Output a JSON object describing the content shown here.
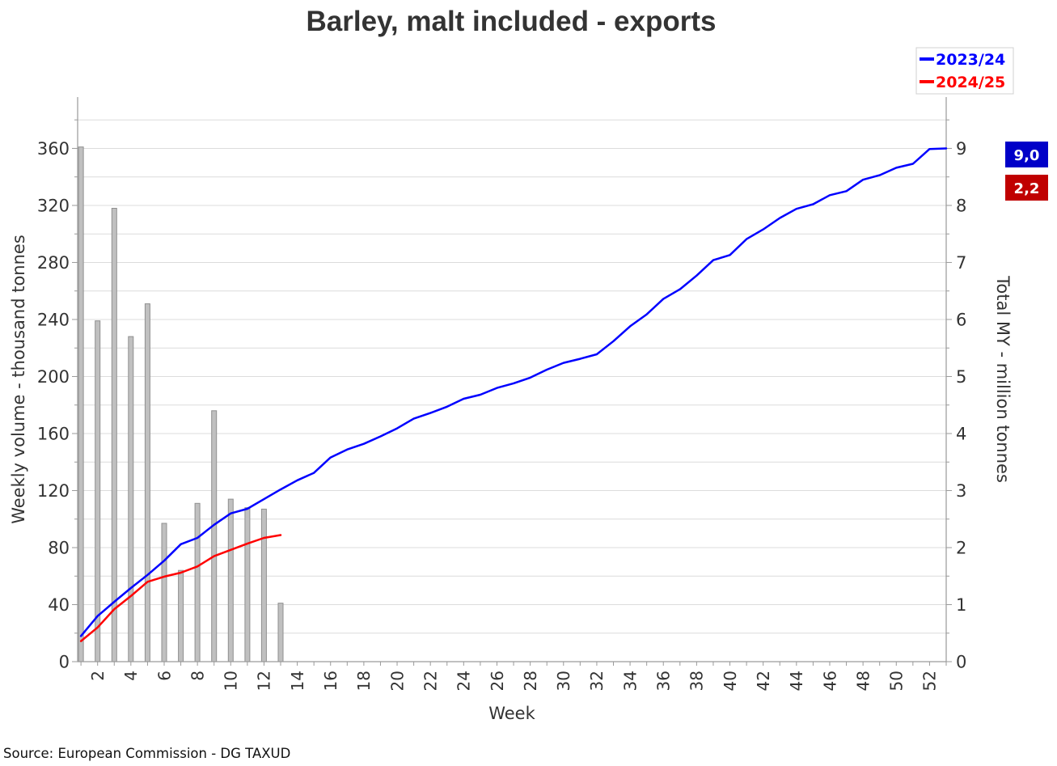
{
  "chart_data": {
    "type": "line",
    "title": "Barley, malt included - exports",
    "xlabel": "Week",
    "ylabel": "Weekly volume - thousand tonnes",
    "y2label": "Total MY - million tonnes",
    "xlim": [
      0.8,
      53
    ],
    "ylim": [
      0,
      396
    ],
    "y2lim": [
      0,
      9.9
    ],
    "x_ticks": [
      2,
      4,
      6,
      8,
      10,
      12,
      14,
      16,
      18,
      20,
      22,
      24,
      26,
      28,
      30,
      32,
      34,
      36,
      38,
      40,
      42,
      44,
      46,
      48,
      50,
      52
    ],
    "y_ticks": [
      0,
      40,
      80,
      120,
      160,
      200,
      240,
      280,
      320,
      360
    ],
    "y2_ticks": [
      0,
      1,
      2,
      3,
      4,
      5,
      6,
      7,
      8,
      9
    ],
    "grid": true,
    "legend_position": "top-right",
    "series": [
      {
        "name": "2023/24",
        "type": "line",
        "axis": "right",
        "color": "#0000ff",
        "x": [
          1,
          2,
          3,
          4,
          5,
          6,
          7,
          8,
          9,
          10,
          11,
          12,
          13,
          14,
          15,
          16,
          17,
          18,
          19,
          20,
          21,
          22,
          23,
          24,
          25,
          26,
          27,
          28,
          29,
          30,
          31,
          32,
          33,
          34,
          35,
          36,
          37,
          38,
          39,
          40,
          41,
          42,
          43,
          44,
          45,
          46,
          47,
          48,
          49,
          50,
          51,
          52,
          53
        ],
        "values": [
          0.45,
          0.8,
          1.05,
          1.29,
          1.52,
          1.77,
          2.06,
          2.17,
          2.4,
          2.6,
          2.68,
          2.85,
          3.02,
          3.18,
          3.31,
          3.58,
          3.72,
          3.82,
          3.95,
          4.09,
          4.26,
          4.36,
          4.47,
          4.61,
          4.68,
          4.8,
          4.88,
          4.98,
          5.12,
          5.24,
          5.31,
          5.39,
          5.62,
          5.88,
          6.09,
          6.36,
          6.53,
          6.77,
          7.04,
          7.13,
          7.41,
          7.58,
          7.78,
          7.94,
          8.02,
          8.18,
          8.25,
          8.45,
          8.53,
          8.66,
          8.73,
          8.99,
          9.0
        ]
      },
      {
        "name": "2024/25",
        "type": "line",
        "axis": "right",
        "color": "#ff0000",
        "x": [
          1,
          2,
          3,
          4,
          5,
          6,
          7,
          8,
          9,
          10,
          11,
          12,
          13
        ],
        "values": [
          0.36,
          0.6,
          0.92,
          1.15,
          1.4,
          1.49,
          1.56,
          1.67,
          1.85,
          1.96,
          2.07,
          2.17,
          2.22
        ]
      },
      {
        "type": "bar",
        "axis": "left",
        "color": "#c0c0c0",
        "x": [
          1,
          2,
          3,
          4,
          5,
          6,
          7,
          8,
          9,
          10,
          11,
          12,
          13
        ],
        "values": [
          361,
          239,
          318,
          228,
          251,
          97,
          64,
          111,
          176,
          114,
          108,
          107,
          41
        ]
      }
    ],
    "annotations": [
      {
        "text": "9,0",
        "color": "#0000c8"
      },
      {
        "text": "2,2",
        "color": "#c00000"
      }
    ]
  },
  "source": "Source: European Commission - DG TAXUD"
}
